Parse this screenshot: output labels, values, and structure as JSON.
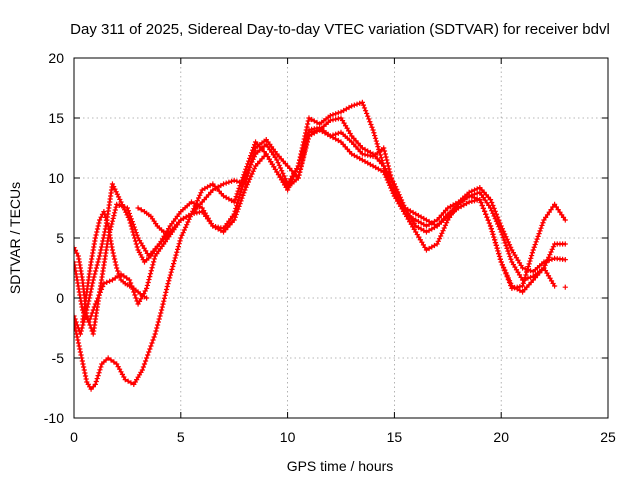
{
  "chart_data": {
    "type": "scatter",
    "title": "Day 311 of 2025, Sidereal Day-to-day VTEC variation (SDTVAR) for receiver bdvl",
    "xlabel": "GPS time / hours",
    "ylabel": "SDTVAR / TECUs",
    "xlim": [
      0,
      25
    ],
    "ylim": [
      -10,
      20
    ],
    "xticks": [
      0,
      5,
      10,
      15,
      20,
      25
    ],
    "yticks": [
      -10,
      -5,
      0,
      5,
      10,
      15,
      20
    ],
    "xtick_labels": [
      "0",
      "5",
      "10",
      "15",
      "20",
      "25"
    ],
    "ytick_labels": [
      "-10",
      "-5",
      "0",
      "5",
      "10",
      "15",
      "20"
    ],
    "grid": true,
    "legend": "none",
    "marker": "plus",
    "color": "#ff0000",
    "series": [
      {
        "name": "track-1",
        "x": [
          0.0,
          0.2,
          0.4,
          0.6,
          0.9,
          1.2,
          1.6,
          2.0,
          2.5,
          3.0,
          3.5,
          4.0,
          4.5,
          5.0,
          5.5,
          6.0,
          6.5,
          7.0,
          7.5,
          8.0,
          8.5,
          9.0,
          9.5,
          10.0,
          10.5,
          11.0,
          11.5,
          12.0,
          12.5,
          13.0,
          13.5,
          14.0,
          14.5,
          15.0,
          15.5,
          16.0,
          16.5,
          17.0,
          17.5,
          18.0,
          18.5,
          19.0,
          19.5,
          20.0,
          20.5,
          21.0,
          21.5,
          22.0,
          22.5,
          23.0
        ],
        "y": [
          4.2,
          3.5,
          1.5,
          -1.5,
          -3.0,
          0.5,
          5.0,
          7.8,
          7.5,
          5.0,
          3.5,
          4.5,
          6.0,
          7.2,
          8.0,
          7.5,
          6.0,
          5.8,
          7.0,
          10.0,
          12.0,
          12.8,
          11.5,
          9.5,
          11.0,
          14.0,
          14.2,
          13.5,
          13.8,
          13.0,
          12.0,
          11.8,
          12.5,
          9.0,
          7.0,
          6.5,
          6.0,
          6.5,
          7.5,
          8.0,
          8.8,
          9.2,
          8.2,
          6.0,
          4.0,
          2.5,
          2.2,
          3.0,
          3.3,
          3.2
        ]
      },
      {
        "name": "track-2",
        "x": [
          0.0,
          0.3,
          0.6,
          0.8,
          1.0,
          1.3,
          1.6,
          2.0,
          2.4,
          2.8,
          3.2,
          3.5,
          3.8,
          4.1,
          4.4,
          5.0,
          5.5,
          6.0,
          6.5,
          7.0,
          7.5,
          8.0,
          8.5,
          9.0,
          9.5,
          10.0,
          10.5,
          11.0,
          11.5,
          12.0,
          12.5,
          13.0,
          13.5,
          14.0,
          14.5,
          15.0,
          15.5,
          16.0,
          16.5,
          17.0,
          17.5,
          18.0,
          18.5,
          19.0,
          19.5,
          20.0,
          20.5,
          21.0,
          21.5,
          22.0,
          22.5,
          23.0
        ],
        "y": [
          -2.0,
          -4.5,
          -7.0,
          -7.6,
          -7.2,
          -5.5,
          -5.0,
          -5.5,
          -6.8,
          -7.2,
          -6.0,
          -4.5,
          -3.0,
          -1.0,
          1.2,
          5.0,
          7.0,
          9.0,
          9.5,
          8.5,
          8.0,
          10.5,
          13.0,
          12.0,
          10.5,
          9.0,
          11.0,
          15.0,
          14.5,
          15.2,
          15.5,
          16.0,
          16.3,
          14.0,
          11.0,
          8.5,
          7.0,
          5.5,
          4.0,
          4.5,
          6.5,
          7.8,
          8.5,
          8.2,
          6.0,
          3.0,
          0.8,
          1.0,
          4.0,
          6.5,
          7.8,
          6.5
        ]
      },
      {
        "name": "track-3",
        "x": [
          0.0,
          0.3,
          0.6,
          0.9,
          1.2,
          1.5,
          1.8,
          2.2,
          2.6,
          3.0,
          3.3,
          3.6,
          4.0,
          4.5,
          5.0,
          5.5,
          6.0,
          6.5,
          7.0,
          7.5,
          8.0,
          8.5,
          9.0,
          9.5,
          10.0,
          10.5,
          11.0,
          11.5,
          12.0,
          12.5,
          13.0,
          13.5,
          14.0,
          14.5,
          15.0,
          15.5,
          16.0,
          16.5,
          17.0,
          17.5,
          18.0,
          18.5,
          19.0,
          19.5,
          20.0,
          20.5,
          21.0,
          21.5,
          22.0,
          22.5,
          23.0
        ],
        "y": [
          -1.5,
          -3.0,
          -1.0,
          1.5,
          3.5,
          6.0,
          9.5,
          8.0,
          6.5,
          4.0,
          3.0,
          3.5,
          4.5,
          5.5,
          6.5,
          7.0,
          8.0,
          9.0,
          9.5,
          9.8,
          9.5,
          12.5,
          13.2,
          12.0,
          11.0,
          10.0,
          13.8,
          14.0,
          14.8,
          15.0,
          13.5,
          12.5,
          12.0,
          11.0,
          9.5,
          7.5,
          6.0,
          5.5,
          6.0,
          7.0,
          7.8,
          8.5,
          8.8,
          7.5,
          5.5,
          3.0,
          1.5,
          1.8,
          2.5,
          4.5,
          4.5
        ]
      },
      {
        "name": "track-4",
        "x": [
          0.0,
          0.2,
          0.4,
          0.7,
          1.0,
          1.4,
          1.8,
          2.2,
          2.6,
          3.0,
          3.4,
          3.8,
          4.2,
          4.6,
          5.0,
          5.5,
          6.0,
          6.5,
          7.0,
          7.5,
          8.0,
          8.5,
          9.0,
          9.5,
          10.0,
          10.5,
          11.0,
          11.5,
          12.0,
          12.5,
          13.0,
          13.5,
          14.0,
          14.5,
          15.0,
          15.5,
          16.0,
          16.5,
          17.0,
          17.5,
          18.0,
          18.5,
          19.0,
          19.5,
          20.0,
          20.5,
          21.0,
          21.5,
          22.0,
          22.5
        ],
        "y": [
          3.0,
          1.0,
          -1.0,
          -2.0,
          -0.5,
          1.2,
          1.5,
          2.0,
          1.5,
          -0.5,
          0.8,
          3.5,
          4.5,
          5.5,
          6.5,
          7.0,
          7.2,
          6.0,
          5.5,
          6.5,
          9.0,
          11.0,
          12.0,
          10.5,
          9.2,
          10.0,
          13.5,
          14.0,
          13.5,
          13.0,
          12.0,
          11.5,
          11.0,
          10.5,
          8.5,
          7.5,
          7.0,
          6.5,
          6.0,
          6.8,
          7.5,
          8.0,
          8.2,
          6.0,
          3.0,
          1.0,
          0.5,
          1.5,
          2.5,
          1.0
        ]
      },
      {
        "name": "track-5",
        "x": [
          0.4,
          0.6,
          0.8,
          1.0,
          1.2,
          1.4,
          1.6,
          1.8,
          2.0,
          2.2,
          2.4,
          2.6,
          2.8,
          3.0,
          3.2,
          3.4
        ],
        "y": [
          -2.0,
          0.5,
          3.0,
          5.0,
          6.5,
          7.2,
          6.0,
          4.0,
          2.5,
          1.5,
          1.2,
          1.0,
          0.8,
          0.5,
          0.2,
          0.0
        ]
      },
      {
        "name": "track-6",
        "x": [
          3.0,
          3.3,
          3.6,
          3.9,
          4.2
        ],
        "y": [
          7.5,
          7.2,
          6.8,
          6.0,
          5.5
        ]
      },
      {
        "name": "outlier",
        "x": [
          23.0
        ],
        "y": [
          0.9
        ]
      }
    ]
  }
}
